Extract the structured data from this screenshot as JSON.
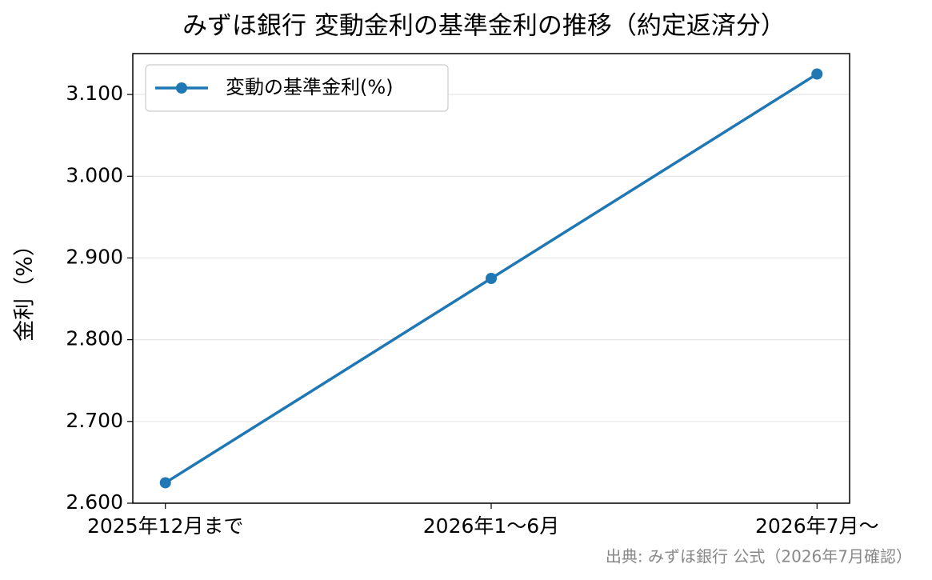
{
  "chart_data": {
    "type": "line",
    "title": "みずほ銀行 変動金利の基準金利の推移（約定返済分）",
    "ylabel": "金利（%）",
    "source": "出典: みずほ銀行 公式（2026年7月確認）",
    "categories": [
      "2025年12月まで",
      "2026年1〜6月",
      "2026年7月〜"
    ],
    "series": [
      {
        "name": "変動の基準金利(%)",
        "color": "#1f77b4",
        "values": [
          2.625,
          2.875,
          3.125
        ]
      }
    ],
    "ylim": [
      2.6,
      3.15
    ],
    "yticks": [
      {
        "value": 2.6,
        "label": "2.600"
      },
      {
        "value": 2.7,
        "label": "2.700"
      },
      {
        "value": 2.8,
        "label": "2.800"
      },
      {
        "value": 2.9,
        "label": "2.900"
      },
      {
        "value": 3.0,
        "label": "3.000"
      },
      {
        "value": 3.1,
        "label": "3.100"
      }
    ],
    "grid": true,
    "legend": "upper left"
  }
}
